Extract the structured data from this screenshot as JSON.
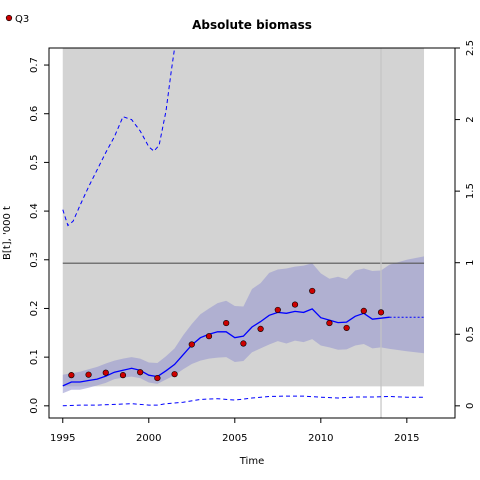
{
  "chart_data": {
    "type": "line",
    "title": "Absolute biomass",
    "xlabel": "Time",
    "ylabel": "B[t], '000 t",
    "xlim": [
      1994.2,
      2017.8
    ],
    "ylim": [
      -0.025,
      0.735
    ],
    "xticks": [
      1995,
      2000,
      2005,
      2010,
      2015
    ],
    "yticks": [
      0.0,
      0.1,
      0.2,
      0.3,
      0.4,
      0.5,
      0.6,
      0.7
    ],
    "y2ticks": [
      0,
      0.5,
      1,
      1.5,
      2,
      2.5
    ],
    "y2lim": [
      -0.085,
      2.5
    ],
    "legend": {
      "position": "top-left",
      "entries": [
        "Q3"
      ]
    },
    "colors": {
      "panel": "#d3d3d3",
      "band": "#9a9ad0",
      "line": "#0000ff",
      "point": "#cc0000",
      "bmsy": "#555555"
    },
    "shaded_region": {
      "x": [
        1995,
        2016
      ],
      "ymin": 0.04
    },
    "reference_line_y": 0.293,
    "vertical_line_x": 2013.5,
    "series": [
      {
        "name": "Q3",
        "kind": "points",
        "x": [
          1995.5,
          1996.5,
          1997.5,
          1998.5,
          1999.5,
          2000.5,
          2001.5,
          2002.5,
          2003.5,
          2004.5,
          2005.5,
          2006.5,
          2007.5,
          2008.5,
          2009.5,
          2010.5,
          2011.5,
          2012.5,
          2013.5
        ],
        "y": [
          0.063,
          0.064,
          0.068,
          0.063,
          0.069,
          0.057,
          0.065,
          0.126,
          0.143,
          0.17,
          0.128,
          0.158,
          0.197,
          0.208,
          0.236,
          0.17,
          0.16,
          0.195,
          0.192
        ]
      },
      {
        "kind": "line",
        "x": [
          1995.0,
          1995.5,
          1996.0,
          1996.5,
          1997.0,
          1997.5,
          1998.0,
          1998.5,
          1999.0,
          1999.5,
          2000.0,
          2000.5,
          2001.0,
          2001.5,
          2002.0,
          2002.5,
          2003.0,
          2003.5,
          2004.0,
          2004.5,
          2005.0,
          2005.5,
          2006.0,
          2006.5,
          2007.0,
          2007.5,
          2008.0,
          2008.5,
          2009.0,
          2009.5,
          2010.0,
          2010.5,
          2011.0,
          2011.5,
          2012.0,
          2012.5,
          2013.0,
          2013.5,
          2014.0
        ],
        "y": [
          0.041,
          0.049,
          0.049,
          0.052,
          0.055,
          0.061,
          0.069,
          0.073,
          0.077,
          0.073,
          0.063,
          0.06,
          0.072,
          0.085,
          0.105,
          0.125,
          0.14,
          0.147,
          0.152,
          0.152,
          0.14,
          0.143,
          0.162,
          0.173,
          0.186,
          0.192,
          0.19,
          0.194,
          0.192,
          0.199,
          0.181,
          0.176,
          0.171,
          0.172,
          0.184,
          0.19,
          0.178,
          0.18,
          0.182
        ]
      },
      {
        "kind": "projection",
        "x": [
          2014.0,
          2015.0,
          2016.0
        ],
        "y": [
          0.182,
          0.182,
          0.182
        ]
      },
      {
        "kind": "band",
        "x": [
          1995.0,
          1995.5,
          1996.0,
          1996.5,
          1997.0,
          1997.5,
          1998.0,
          1998.5,
          1999.0,
          1999.5,
          2000.0,
          2000.5,
          2001.0,
          2001.5,
          2002.0,
          2002.5,
          2003.0,
          2003.5,
          2004.0,
          2004.5,
          2005.0,
          2005.5,
          2006.0,
          2006.5,
          2007.0,
          2007.5,
          2008.0,
          2008.5,
          2009.0,
          2009.5,
          2010.0,
          2010.5,
          2011.0,
          2011.5,
          2012.0,
          2012.5,
          2013.0,
          2013.5,
          2014.0,
          2015.0,
          2016.0
        ],
        "upper": [
          0.064,
          0.067,
          0.07,
          0.075,
          0.08,
          0.087,
          0.093,
          0.097,
          0.1,
          0.097,
          0.089,
          0.088,
          0.102,
          0.118,
          0.145,
          0.168,
          0.188,
          0.2,
          0.211,
          0.216,
          0.205,
          0.204,
          0.24,
          0.252,
          0.273,
          0.28,
          0.282,
          0.286,
          0.288,
          0.293,
          0.272,
          0.261,
          0.265,
          0.26,
          0.278,
          0.282,
          0.277,
          0.278,
          0.29,
          0.3,
          0.307
        ],
        "lower": [
          0.026,
          0.033,
          0.033,
          0.037,
          0.042,
          0.047,
          0.055,
          0.058,
          0.06,
          0.057,
          0.048,
          0.045,
          0.054,
          0.063,
          0.075,
          0.086,
          0.093,
          0.097,
          0.099,
          0.1,
          0.09,
          0.092,
          0.11,
          0.118,
          0.126,
          0.133,
          0.128,
          0.134,
          0.131,
          0.137,
          0.124,
          0.12,
          0.115,
          0.116,
          0.124,
          0.127,
          0.118,
          0.12,
          0.117,
          0.112,
          0.108
        ]
      },
      {
        "kind": "harvest-upper",
        "axis": "right",
        "x": [
          1995.0,
          1995.3,
          1995.6,
          1996.0,
          1996.5,
          1997.0,
          1997.5,
          1998.0,
          1998.5,
          1999.0,
          1999.5,
          2000.0,
          2000.3,
          2000.6,
          2001.0,
          2001.3,
          2001.5
        ],
        "y": [
          1.37,
          1.26,
          1.29,
          1.4,
          1.53,
          1.65,
          1.77,
          1.88,
          2.02,
          2.0,
          1.92,
          1.81,
          1.78,
          1.82,
          2.06,
          2.33,
          2.5
        ]
      },
      {
        "kind": "harvest-lower",
        "axis": "right",
        "x": [
          1995.0,
          1996.0,
          1997.0,
          1998.0,
          1999.0,
          2000.0,
          2000.5,
          2001.0,
          2002.0,
          2003.0,
          2004.0,
          2005.0,
          2006.0,
          2007.0,
          2008.0,
          2009.0,
          2010.0,
          2011.0,
          2012.0,
          2013.0,
          2014.0,
          2015.0,
          2016.0
        ],
        "y": [
          0.0,
          0.005,
          0.005,
          0.01,
          0.015,
          0.005,
          0.005,
          0.015,
          0.025,
          0.045,
          0.05,
          0.04,
          0.055,
          0.065,
          0.068,
          0.068,
          0.06,
          0.055,
          0.062,
          0.062,
          0.065,
          0.06,
          0.06
        ]
      }
    ]
  }
}
